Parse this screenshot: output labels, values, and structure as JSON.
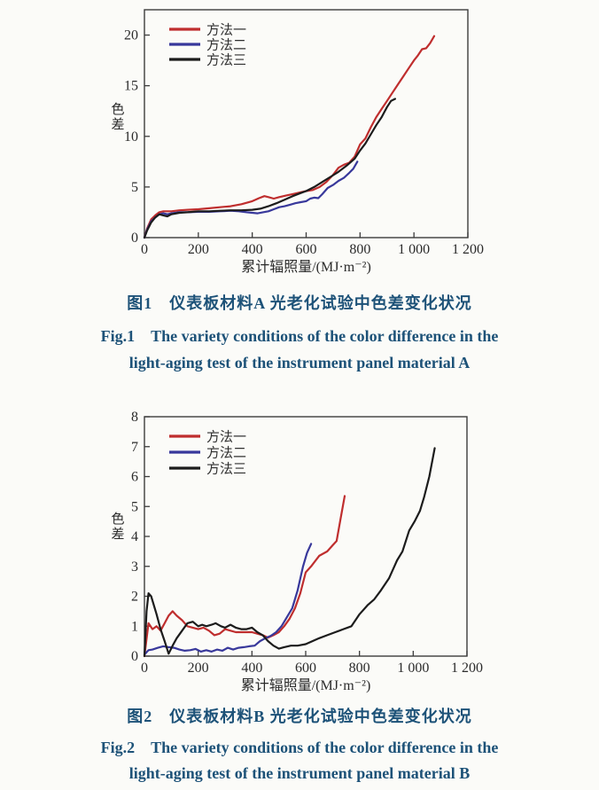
{
  "colors": {
    "method1": "#bf2e2e",
    "method2": "#38389b",
    "method3": "#1c1c1c",
    "caption": "#1d5278",
    "axis": "#3c3c3c",
    "tick_text": "#2b2b2b",
    "legend_text": "#2f2f2f",
    "background": "#fbfbf8"
  },
  "figure1": {
    "caption_zh": "图1　仪表板材料A 光老化试验中色差变化状况",
    "caption_en_line1": "Fig.1　The variety conditions of the color difference in the",
    "caption_en_line2": "light-aging test of the instrument panel material A"
  },
  "figure2": {
    "caption_zh": "图2　仪表板材料B 光老化试验中色差变化状况",
    "caption_en_line1": "Fig.2　The variety conditions of the color difference in the",
    "caption_en_line2": "light-aging test of the instrument panel material B"
  },
  "chart_data": [
    {
      "type": "line",
      "title": "",
      "xlabel": "累计辐照量/(MJ·m⁻²)",
      "ylabel": "色差",
      "xlim": [
        0,
        1200
      ],
      "ylim": [
        0,
        22.5
      ],
      "xticks": [
        0,
        200,
        400,
        600,
        800,
        1000,
        1200
      ],
      "xtick_labels": [
        "0",
        "200",
        "400",
        "600",
        "800",
        "1 000",
        "1 200"
      ],
      "yticks": [
        0,
        5,
        10,
        15,
        20
      ],
      "ytick_labels": [
        "0",
        "5",
        "10",
        "15",
        "20"
      ],
      "grid": false,
      "legend_position": "top-left",
      "legend": [
        "方法一",
        "方法二",
        "方法三"
      ],
      "series": [
        {
          "name": "方法一",
          "color_key": "method1",
          "x": [
            0,
            10,
            25,
            40,
            55,
            70,
            85,
            100,
            130,
            160,
            200,
            240,
            280,
            320,
            360,
            400,
            425,
            445,
            460,
            480,
            500,
            525,
            550,
            575,
            600,
            625,
            650,
            675,
            700,
            720,
            740,
            760,
            780,
            800,
            820,
            840,
            860,
            880,
            900,
            920,
            940,
            960,
            980,
            1000,
            1015,
            1030,
            1045,
            1060,
            1075
          ],
          "y": [
            0,
            0.9,
            1.8,
            2.2,
            2.5,
            2.6,
            2.6,
            2.6,
            2.7,
            2.75,
            2.8,
            2.9,
            3.0,
            3.1,
            3.3,
            3.6,
            3.9,
            4.1,
            4.0,
            3.85,
            4.0,
            4.15,
            4.3,
            4.45,
            4.6,
            4.7,
            5.0,
            5.5,
            6.2,
            6.9,
            7.2,
            7.4,
            8.0,
            9.2,
            9.8,
            10.9,
            11.9,
            12.7,
            13.5,
            14.3,
            15.1,
            15.9,
            16.7,
            17.5,
            18.0,
            18.6,
            18.7,
            19.2,
            19.9
          ]
        },
        {
          "name": "方法二",
          "color_key": "method2",
          "x": [
            0,
            10,
            25,
            40,
            55,
            70,
            85,
            100,
            130,
            160,
            200,
            240,
            280,
            320,
            350,
            380,
            400,
            420,
            440,
            460,
            480,
            500,
            520,
            540,
            560,
            580,
            600,
            615,
            630,
            645,
            660,
            680,
            700,
            720,
            740,
            760,
            775,
            790
          ],
          "y": [
            0,
            0.8,
            1.6,
            2.0,
            2.3,
            2.4,
            2.3,
            2.4,
            2.5,
            2.5,
            2.55,
            2.55,
            2.6,
            2.65,
            2.6,
            2.5,
            2.45,
            2.4,
            2.5,
            2.6,
            2.8,
            3.0,
            3.1,
            3.25,
            3.4,
            3.5,
            3.6,
            3.85,
            3.95,
            3.9,
            4.3,
            4.9,
            5.2,
            5.6,
            5.9,
            6.4,
            6.8,
            7.5
          ]
        },
        {
          "name": "方法三",
          "color_key": "method3",
          "x": [
            0,
            10,
            25,
            40,
            55,
            70,
            85,
            100,
            130,
            160,
            200,
            240,
            280,
            320,
            360,
            400,
            430,
            460,
            490,
            520,
            550,
            580,
            600,
            630,
            660,
            690,
            720,
            750,
            780,
            800,
            820,
            840,
            860,
            880,
            900,
            915,
            930
          ],
          "y": [
            0,
            0.7,
            1.5,
            2.0,
            2.3,
            2.2,
            2.1,
            2.3,
            2.45,
            2.5,
            2.6,
            2.6,
            2.65,
            2.7,
            2.7,
            2.75,
            2.85,
            3.1,
            3.4,
            3.75,
            4.1,
            4.4,
            4.6,
            5.0,
            5.5,
            6.0,
            6.5,
            7.1,
            7.8,
            8.6,
            9.3,
            10.2,
            11.1,
            11.9,
            12.9,
            13.5,
            13.7
          ]
        }
      ]
    },
    {
      "type": "line",
      "title": "",
      "xlabel": "累计辐照量/(MJ·m⁻²)",
      "ylabel": "色差",
      "xlim": [
        0,
        1200
      ],
      "ylim": [
        0,
        8
      ],
      "xticks": [
        0,
        200,
        400,
        600,
        800,
        1000,
        1200
      ],
      "xtick_labels": [
        "0",
        "200",
        "400",
        "600",
        "800",
        "1 000",
        "1 200"
      ],
      "yticks": [
        0,
        1,
        2,
        3,
        4,
        5,
        6,
        7,
        8
      ],
      "ytick_labels": [
        "0",
        "1",
        "2",
        "3",
        "4",
        "5",
        "6",
        "7",
        "8"
      ],
      "grid": false,
      "legend_position": "top-left",
      "legend": [
        "方法一",
        "方法二",
        "方法三"
      ],
      "series": [
        {
          "name": "方法一",
          "color_key": "method1",
          "x": [
            0,
            15,
            30,
            45,
            60,
            75,
            90,
            105,
            120,
            140,
            160,
            180,
            200,
            220,
            240,
            260,
            280,
            300,
            320,
            340,
            360,
            380,
            400,
            420,
            440,
            460,
            480,
            500,
            520,
            540,
            560,
            580,
            600,
            620,
            650,
            680,
            700,
            715,
            730,
            745
          ],
          "y": [
            0,
            1.1,
            0.9,
            1.0,
            0.85,
            1.1,
            1.35,
            1.5,
            1.35,
            1.2,
            1.0,
            0.95,
            0.9,
            0.95,
            0.85,
            0.7,
            0.75,
            0.9,
            0.85,
            0.8,
            0.8,
            0.8,
            0.8,
            0.75,
            0.7,
            0.62,
            0.7,
            0.8,
            1.0,
            1.25,
            1.6,
            2.1,
            2.8,
            3.0,
            3.35,
            3.5,
            3.7,
            3.85,
            4.6,
            5.35
          ]
        },
        {
          "name": "方法二",
          "color_key": "method2",
          "x": [
            0,
            15,
            30,
            50,
            70,
            90,
            110,
            130,
            150,
            170,
            190,
            210,
            230,
            250,
            270,
            290,
            310,
            330,
            350,
            370,
            390,
            410,
            430,
            450,
            470,
            490,
            510,
            530,
            550,
            570,
            590,
            605,
            620
          ],
          "y": [
            0.05,
            0.2,
            0.22,
            0.28,
            0.33,
            0.3,
            0.28,
            0.22,
            0.18,
            0.2,
            0.24,
            0.15,
            0.2,
            0.15,
            0.22,
            0.18,
            0.28,
            0.22,
            0.28,
            0.3,
            0.33,
            0.35,
            0.5,
            0.6,
            0.68,
            0.8,
            1.0,
            1.3,
            1.6,
            2.2,
            3.0,
            3.45,
            3.75
          ]
        },
        {
          "name": "方法三",
          "color_key": "method3",
          "x": [
            0,
            8,
            15,
            25,
            45,
            60,
            75,
            90,
            105,
            120,
            140,
            160,
            180,
            200,
            215,
            230,
            250,
            265,
            285,
            300,
            320,
            340,
            360,
            380,
            400,
            420,
            440,
            460,
            480,
            500,
            520,
            545,
            570,
            600,
            625,
            650,
            680,
            710,
            740,
            770,
            800,
            830,
            855,
            880,
            910,
            940,
            960,
            985,
            1005,
            1025,
            1040,
            1060,
            1080
          ],
          "y": [
            0,
            1.5,
            2.1,
            2.0,
            1.4,
            0.9,
            0.5,
            0.08,
            0.35,
            0.6,
            0.85,
            1.1,
            1.15,
            1.0,
            1.05,
            1.0,
            1.05,
            1.1,
            1.0,
            0.95,
            1.05,
            0.95,
            0.9,
            0.9,
            0.95,
            0.8,
            0.7,
            0.5,
            0.35,
            0.25,
            0.3,
            0.35,
            0.35,
            0.4,
            0.5,
            0.6,
            0.7,
            0.8,
            0.9,
            1.0,
            1.4,
            1.7,
            1.9,
            2.2,
            2.6,
            3.2,
            3.5,
            4.2,
            4.5,
            4.85,
            5.3,
            6.0,
            6.95
          ]
        }
      ]
    }
  ]
}
